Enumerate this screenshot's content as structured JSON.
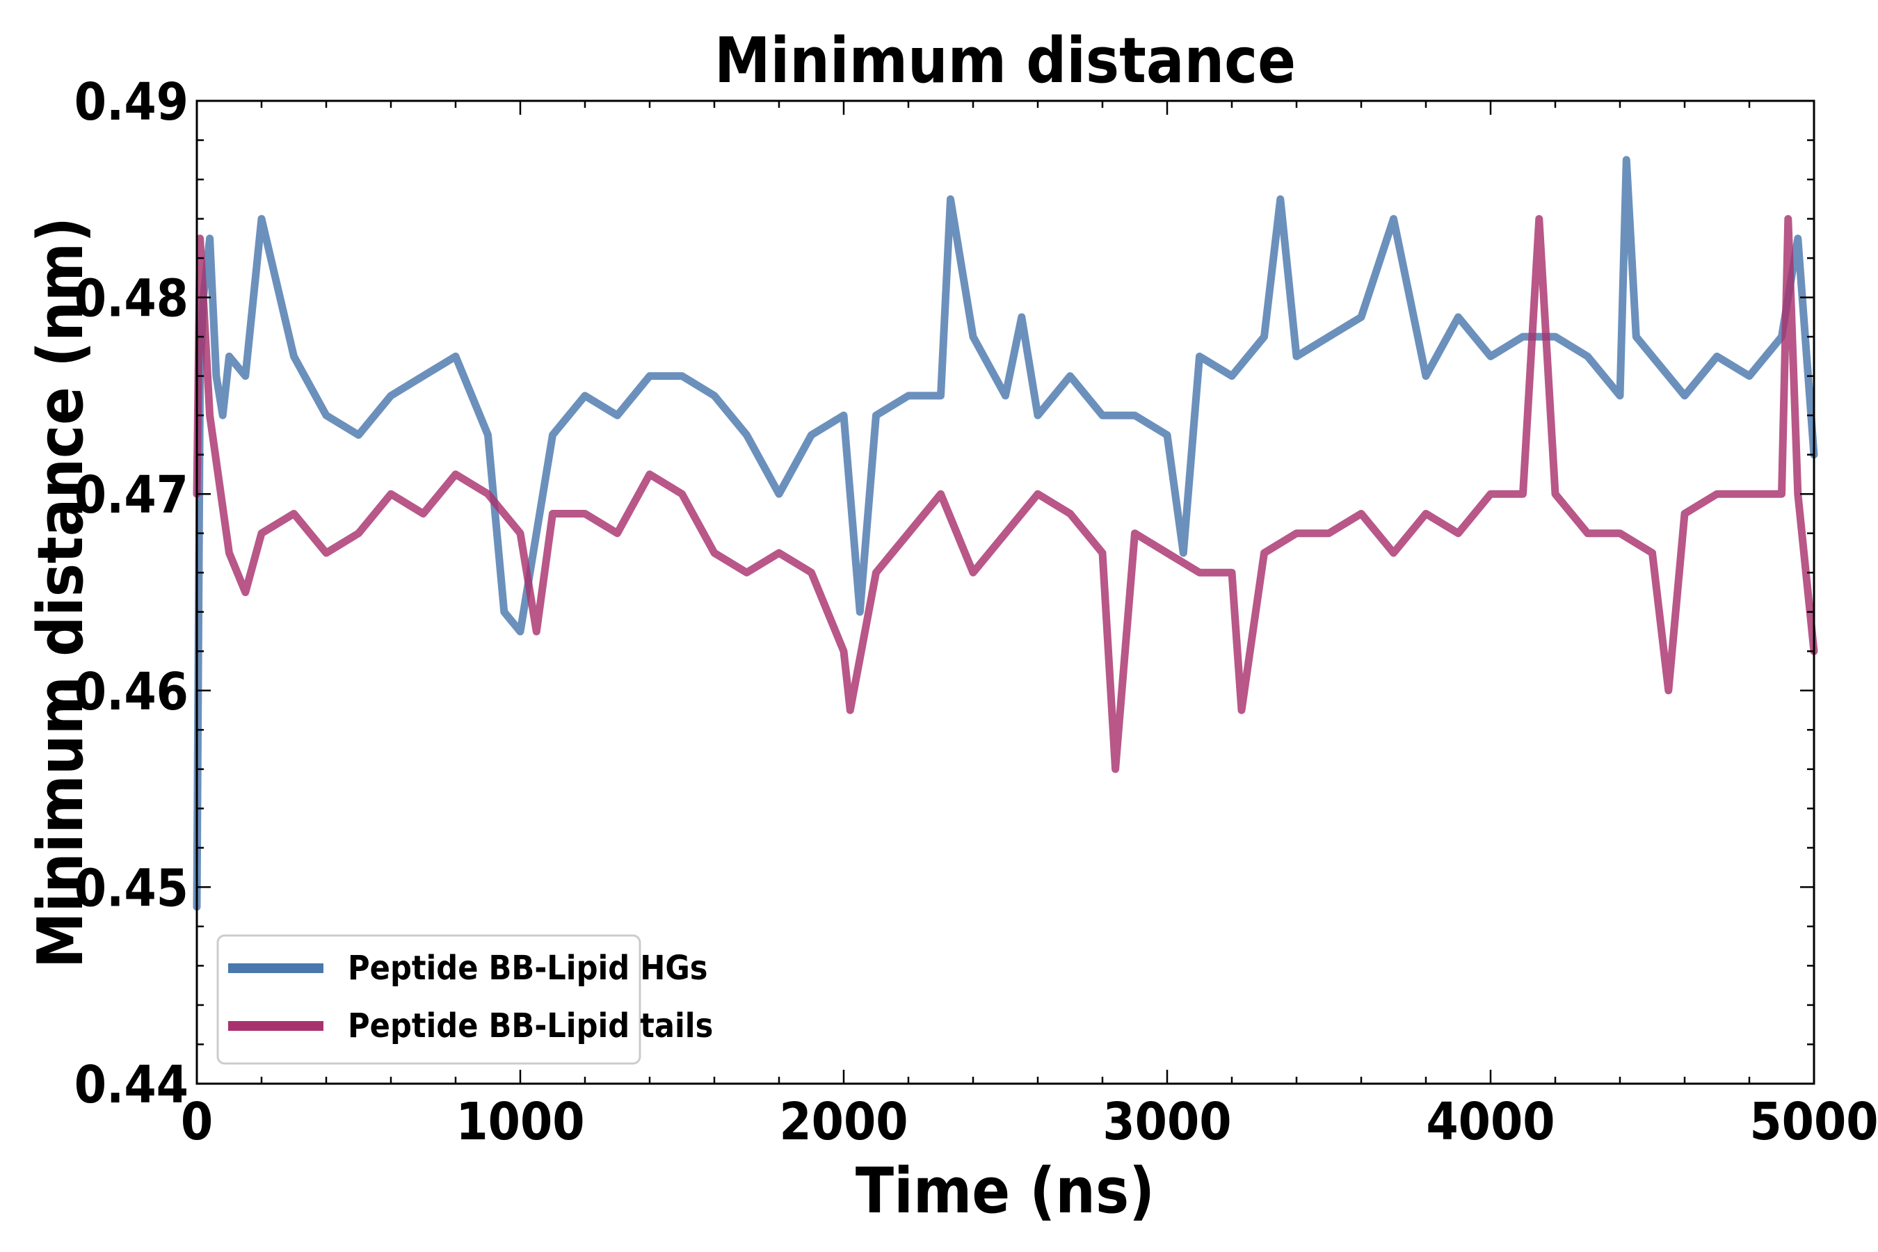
{
  "chart_data": {
    "type": "line",
    "title": "Minimum distance",
    "xlabel": "Time (ns)",
    "ylabel": "Minimum distance (nm)",
    "xlim": [
      0,
      5000
    ],
    "ylim": [
      0.44,
      0.49
    ],
    "xticks": [
      0,
      1000,
      2000,
      3000,
      4000,
      5000
    ],
    "xtick_labels": [
      "0",
      "1000",
      "2000",
      "3000",
      "4000",
      "5000"
    ],
    "yticks": [
      0.44,
      0.45,
      0.46,
      0.47,
      0.48,
      0.49
    ],
    "ytick_labels": [
      "0.44",
      "0.45",
      "0.46",
      "0.47",
      "0.48",
      "0.49"
    ],
    "grid": false,
    "legend_position": "lower-left",
    "series": [
      {
        "name": "Peptide BB-Lipid HGs",
        "color": "#4a78ad",
        "x": [
          0,
          10,
          20,
          40,
          60,
          80,
          100,
          150,
          200,
          300,
          400,
          500,
          600,
          700,
          800,
          900,
          950,
          1000,
          1100,
          1200,
          1300,
          1400,
          1500,
          1600,
          1700,
          1800,
          1900,
          2000,
          2050,
          2100,
          2200,
          2300,
          2330,
          2400,
          2500,
          2550,
          2600,
          2700,
          2800,
          2900,
          3000,
          3050,
          3100,
          3200,
          3300,
          3350,
          3400,
          3500,
          3600,
          3700,
          3800,
          3900,
          4000,
          4100,
          4200,
          4300,
          4400,
          4420,
          4450,
          4500,
          4600,
          4700,
          4800,
          4900,
          4950,
          5000
        ],
        "values": [
          0.449,
          0.476,
          0.48,
          0.483,
          0.476,
          0.474,
          0.477,
          0.476,
          0.484,
          0.477,
          0.474,
          0.473,
          0.475,
          0.476,
          0.477,
          0.473,
          0.464,
          0.463,
          0.473,
          0.475,
          0.474,
          0.476,
          0.476,
          0.475,
          0.473,
          0.47,
          0.473,
          0.474,
          0.464,
          0.474,
          0.475,
          0.475,
          0.485,
          0.478,
          0.475,
          0.479,
          0.474,
          0.476,
          0.474,
          0.474,
          0.473,
          0.467,
          0.477,
          0.476,
          0.478,
          0.485,
          0.477,
          0.478,
          0.479,
          0.484,
          0.476,
          0.479,
          0.477,
          0.478,
          0.478,
          0.477,
          0.475,
          0.487,
          0.478,
          0.477,
          0.475,
          0.477,
          0.476,
          0.478,
          0.483,
          0.472
        ]
      },
      {
        "name": "Peptide BB-Lipid tails",
        "color": "#a8326e",
        "x": [
          0,
          10,
          40,
          100,
          150,
          200,
          300,
          400,
          500,
          600,
          700,
          800,
          900,
          1000,
          1050,
          1100,
          1200,
          1300,
          1400,
          1500,
          1600,
          1700,
          1800,
          1900,
          2000,
          2020,
          2100,
          2200,
          2300,
          2400,
          2500,
          2600,
          2700,
          2800,
          2840,
          2900,
          3000,
          3100,
          3200,
          3230,
          3300,
          3400,
          3500,
          3600,
          3700,
          3800,
          3900,
          4000,
          4100,
          4150,
          4200,
          4300,
          4400,
          4500,
          4550,
          4600,
          4700,
          4800,
          4900,
          4920,
          4950,
          5000
        ],
        "values": [
          0.47,
          0.483,
          0.474,
          0.467,
          0.465,
          0.468,
          0.469,
          0.467,
          0.468,
          0.47,
          0.469,
          0.471,
          0.47,
          0.468,
          0.463,
          0.469,
          0.469,
          0.468,
          0.471,
          0.47,
          0.467,
          0.466,
          0.467,
          0.466,
          0.462,
          0.459,
          0.466,
          0.468,
          0.47,
          0.466,
          0.468,
          0.47,
          0.469,
          0.467,
          0.456,
          0.468,
          0.467,
          0.466,
          0.466,
          0.459,
          0.467,
          0.468,
          0.468,
          0.469,
          0.467,
          0.469,
          0.468,
          0.47,
          0.47,
          0.484,
          0.47,
          0.468,
          0.468,
          0.467,
          0.46,
          0.469,
          0.47,
          0.47,
          0.47,
          0.484,
          0.47,
          0.462
        ]
      }
    ]
  }
}
